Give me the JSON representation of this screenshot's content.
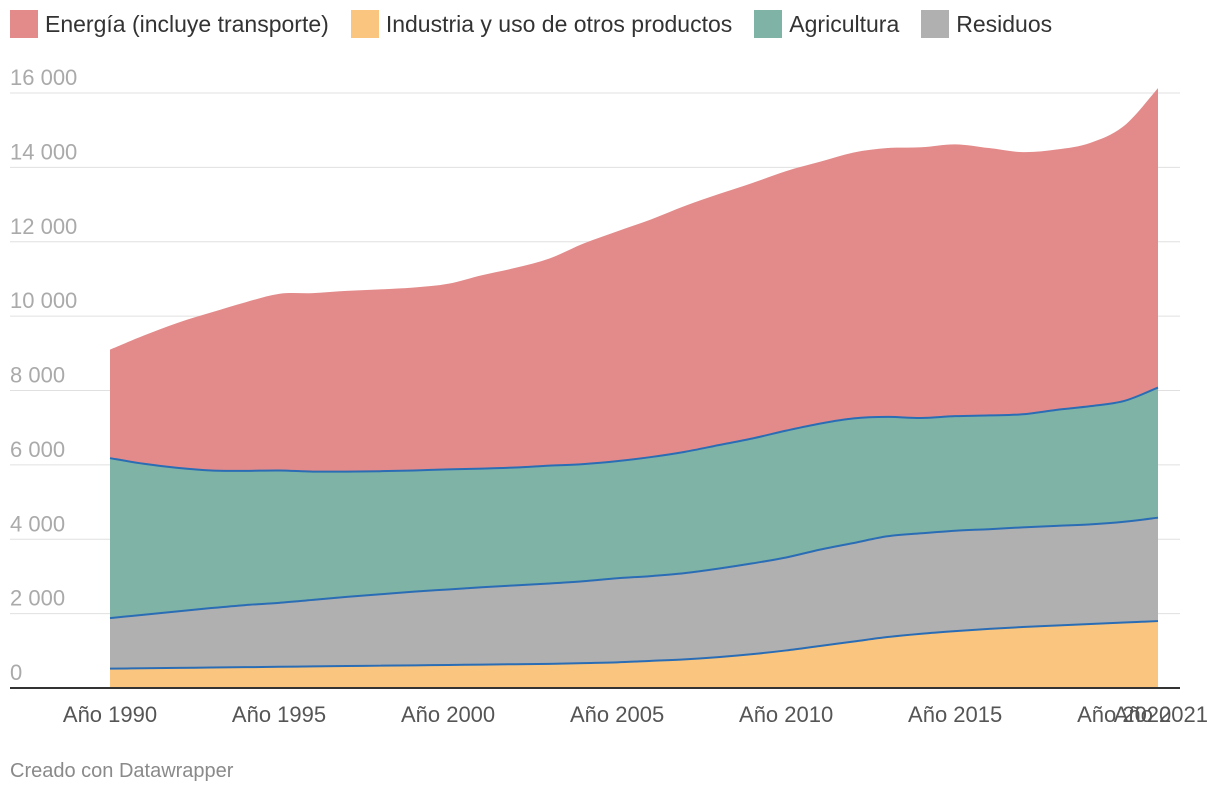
{
  "chart_data": {
    "type": "area",
    "stacked": true,
    "x": [
      1990,
      1991,
      1992,
      1993,
      1994,
      1995,
      1996,
      1997,
      1998,
      1999,
      2000,
      2001,
      2002,
      2003,
      2004,
      2005,
      2006,
      2007,
      2008,
      2009,
      2010,
      2011,
      2012,
      2013,
      2014,
      2015,
      2016,
      2017,
      2018,
      2019,
      2020,
      2021
    ],
    "x_tick_values": [
      1990,
      1995,
      2000,
      2005,
      2010,
      2015,
      2020,
      2021
    ],
    "x_tick_labels": [
      "Año 1990",
      "Año 1995",
      "Año 2000",
      "Año 2005",
      "Año 2010",
      "Año 2015",
      "Año 2020",
      "Año 2021"
    ],
    "y_ticks": [
      0,
      2000,
      4000,
      6000,
      8000,
      10000,
      12000,
      14000,
      16000
    ],
    "y_tick_labels": [
      "0",
      "2 000",
      "4 000",
      "6 000",
      "8 000",
      "10 000",
      "12 000",
      "14 000",
      "16 000"
    ],
    "ylim": [
      0,
      16500
    ],
    "grid": true,
    "legend_position": "top-left",
    "series": [
      {
        "name": "Industria y uso de otros productos",
        "color": "#fac57f",
        "values": [
          520,
          530,
          540,
          550,
          560,
          570,
          580,
          590,
          600,
          610,
          620,
          630,
          640,
          650,
          670,
          690,
          730,
          770,
          830,
          910,
          1010,
          1130,
          1250,
          1370,
          1460,
          1530,
          1590,
          1640,
          1680,
          1720,
          1760,
          1800
        ]
      },
      {
        "name": "Residuos",
        "color": "#b0b0b0",
        "values": [
          1360,
          1440,
          1520,
          1600,
          1670,
          1720,
          1790,
          1860,
          1920,
          1980,
          2030,
          2080,
          2120,
          2160,
          2200,
          2260,
          2280,
          2320,
          2380,
          2440,
          2500,
          2590,
          2650,
          2710,
          2700,
          2700,
          2680,
          2680,
          2680,
          2680,
          2710,
          2780
        ]
      },
      {
        "name": "Agricultura",
        "color": "#7fb3a6",
        "values": [
          4300,
          4060,
          3860,
          3700,
          3610,
          3560,
          3450,
          3370,
          3310,
          3260,
          3230,
          3190,
          3170,
          3170,
          3150,
          3150,
          3200,
          3260,
          3320,
          3360,
          3410,
          3390,
          3350,
          3210,
          3100,
          3080,
          3060,
          3040,
          3120,
          3180,
          3250,
          3500
        ]
      },
      {
        "name": "Energía (incluye transporte)",
        "color": "#e38b8a",
        "values": [
          2920,
          3450,
          3900,
          4250,
          4530,
          4750,
          4800,
          4860,
          4890,
          4920,
          4990,
          5200,
          5370,
          5570,
          5930,
          6180,
          6390,
          6610,
          6750,
          6870,
          6980,
          7040,
          7150,
          7230,
          7280,
          7310,
          7190,
          7050,
          7000,
          7080,
          7400,
          8050
        ]
      }
    ]
  },
  "legend": [
    {
      "label": "Energía (incluye transporte)",
      "color": "#e38b8a"
    },
    {
      "label": "Industria y uso de otros productos",
      "color": "#fac57f"
    },
    {
      "label": "Agricultura",
      "color": "#7fb3a6"
    },
    {
      "label": "Residuos",
      "color": "#b0b0b0"
    }
  ],
  "credit": "Creado con Datawrapper",
  "colors": {
    "boundary_line": "#2a6db5",
    "grid": "#e0e0e0",
    "tick_text": "#aaaaaa",
    "axis_label_text": "#555555"
  }
}
